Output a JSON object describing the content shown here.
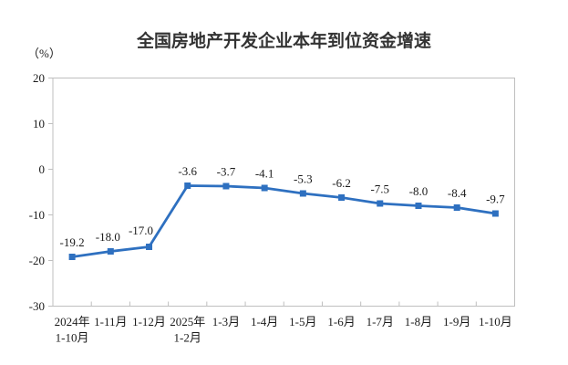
{
  "title": "全国房地产开发企业本年到位资金增速",
  "unit_label": "（%）",
  "chart_data": {
    "type": "line",
    "title": "全国房地产开发企业本年到位资金增速",
    "ylabel": "（%）",
    "categories": [
      "2024年\n1-10月",
      "1-11月",
      "1-12月",
      "2025年\n1-2月",
      "1-3月",
      "1-4月",
      "1-5月",
      "1-6月",
      "1-7月",
      "1-8月",
      "1-9月",
      "1-10月"
    ],
    "values": [
      -19.2,
      -18.0,
      -17.0,
      -3.6,
      -3.7,
      -4.1,
      -5.3,
      -6.2,
      -7.5,
      -8.0,
      -8.4,
      -9.7
    ],
    "data_labels": [
      "-19.2",
      "-18.0",
      "-17.0",
      "-3.6",
      "-3.7",
      "-4.1",
      "-5.3",
      "-6.2",
      "-7.5",
      "-8.0",
      "-8.4",
      "-9.7"
    ],
    "ylim": [
      -30,
      20
    ],
    "yticks": [
      20,
      10,
      0,
      -10,
      -20,
      -30
    ],
    "grid": false,
    "legend": "none",
    "line_color": "#2E70C0",
    "marker": "square",
    "axis_color": "#BFBFBF",
    "text_color": "#1A1A1A"
  }
}
